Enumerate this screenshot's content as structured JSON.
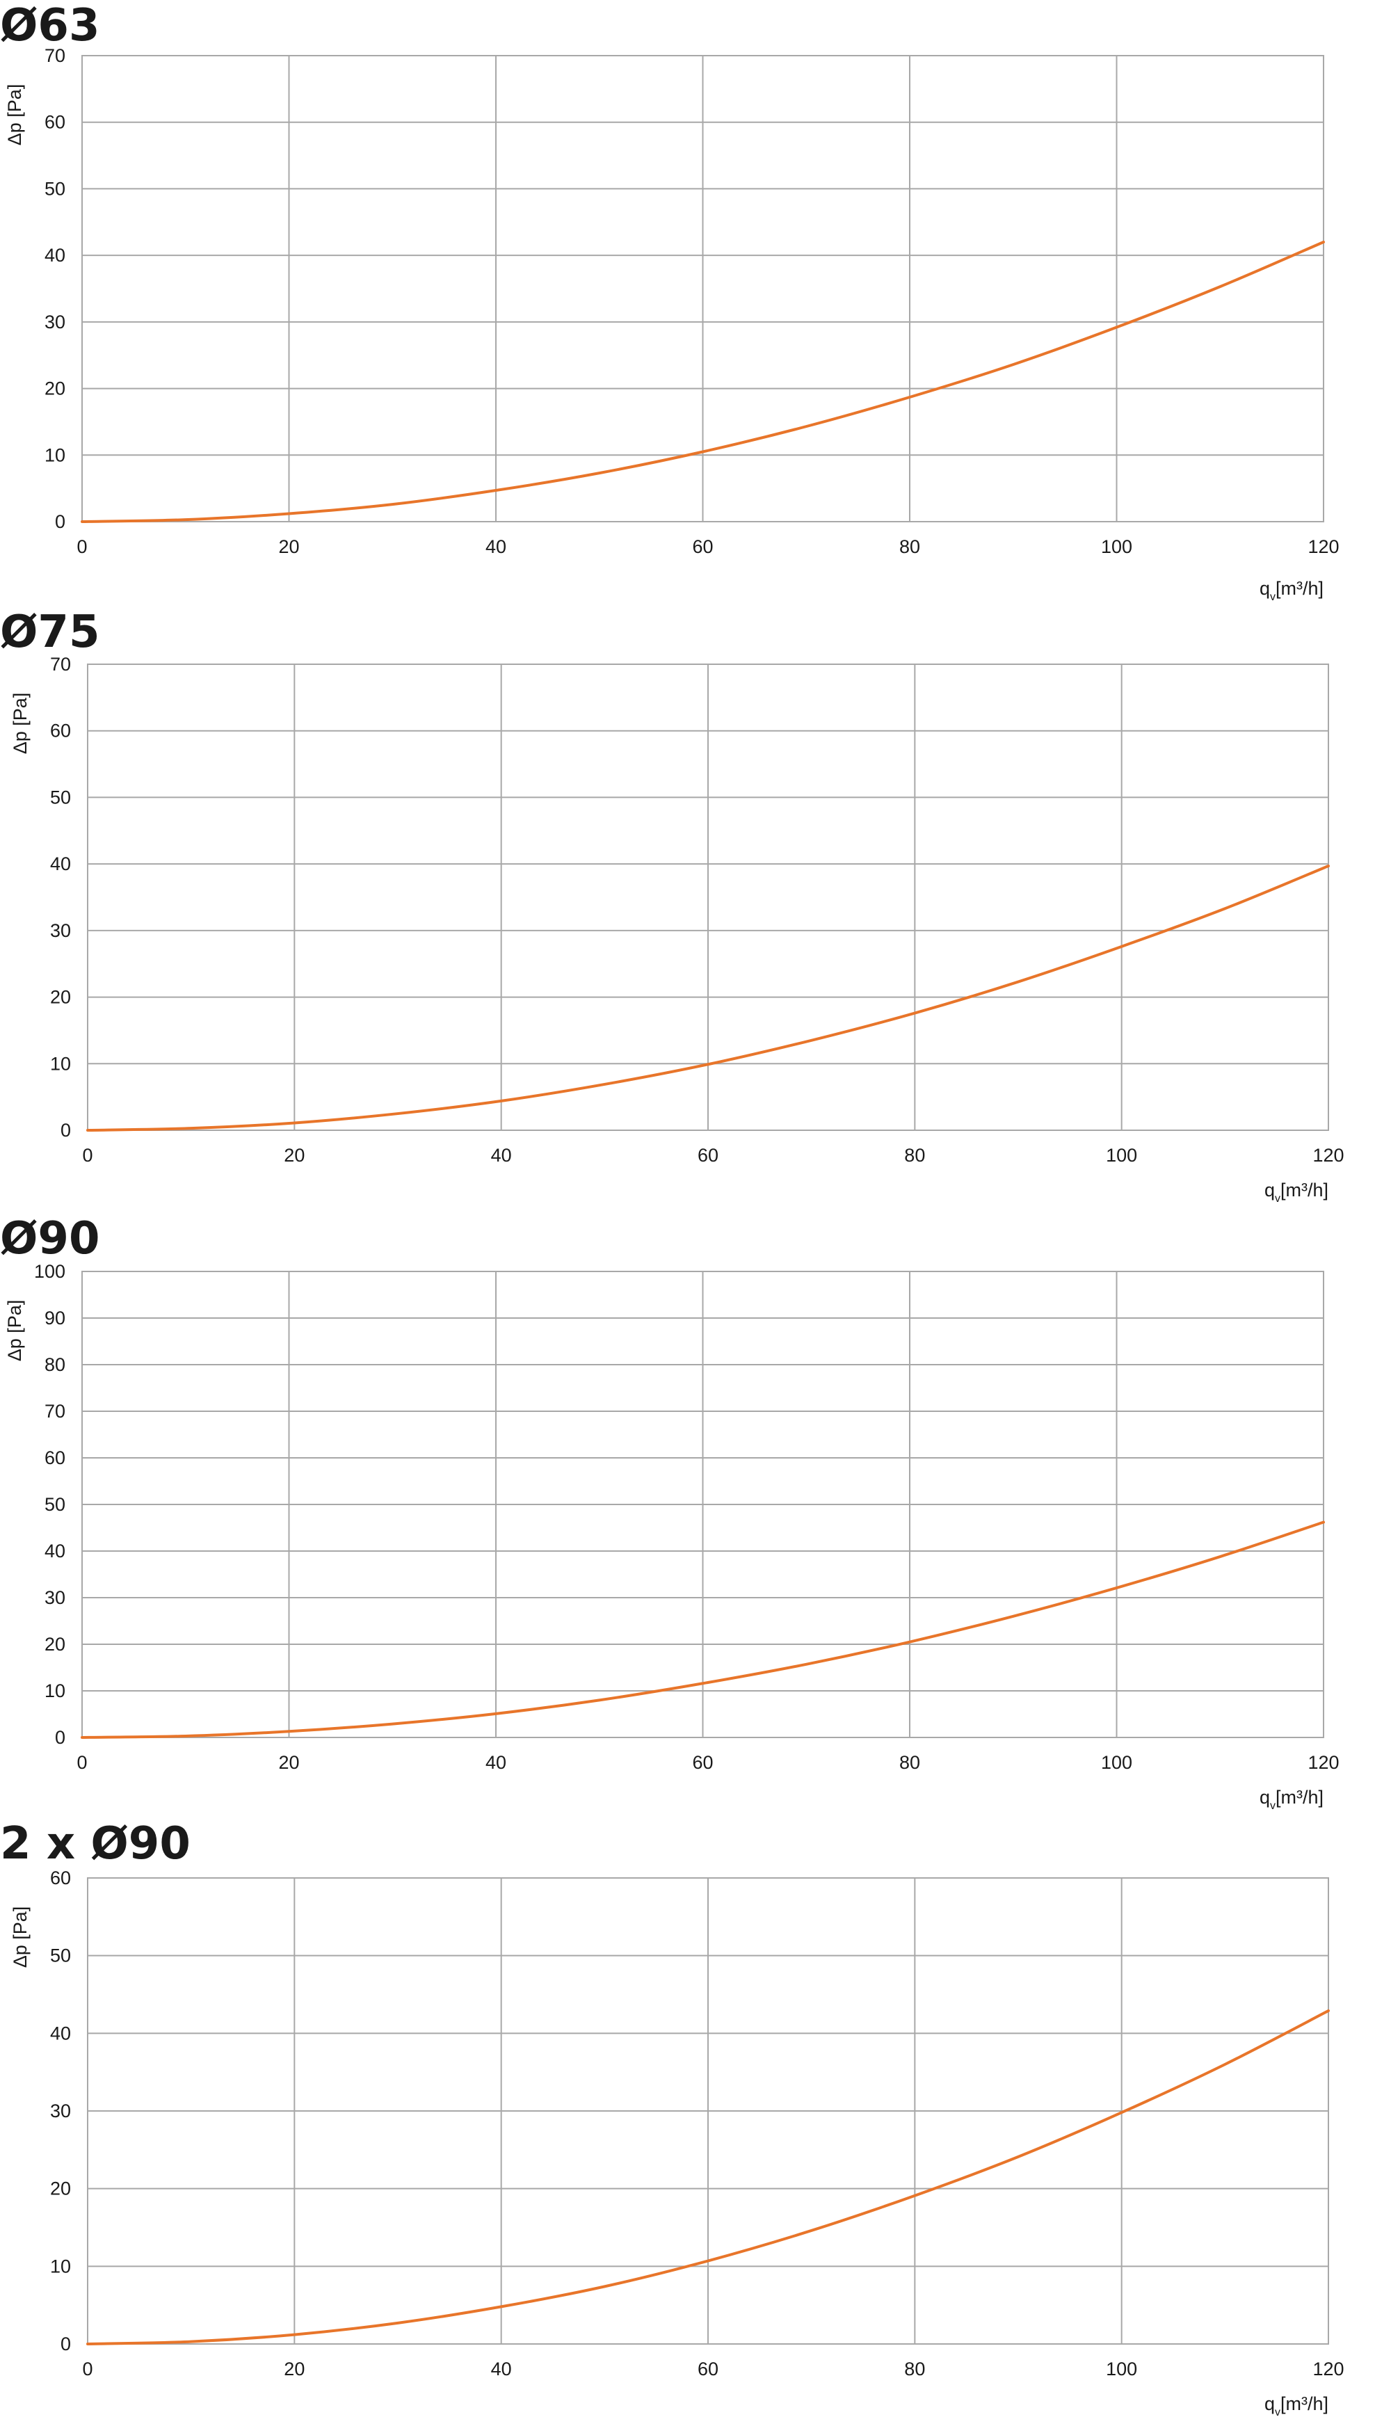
{
  "colors": {
    "curve": "#e8752a",
    "grid": "#a8a8a8",
    "text": "#1a1a1a"
  },
  "chart_data": [
    {
      "type": "line",
      "title": "Ø63",
      "xlabel_main": "q",
      "xlabel_sub": "v",
      "xlabel_unit": "[m³/h]",
      "ylabel": "Δp [Pa]",
      "xlim": [
        0,
        120
      ],
      "ylim": [
        0,
        70
      ],
      "x_ticks": [
        0,
        20,
        40,
        60,
        80,
        100,
        120
      ],
      "y_ticks": [
        0,
        10,
        20,
        30,
        40,
        50,
        60,
        70
      ],
      "grid": true,
      "series": [
        {
          "x": [
            0,
            10,
            20,
            30,
            40,
            50,
            60,
            70,
            80,
            90,
            100,
            110,
            120
          ],
          "y": [
            0,
            0.3,
            1.2,
            2.6,
            4.7,
            7.3,
            10.5,
            14.3,
            18.7,
            23.6,
            29.2,
            35.3,
            42
          ]
        }
      ]
    },
    {
      "type": "line",
      "title": "Ø75",
      "xlabel_main": "q",
      "xlabel_sub": "v",
      "xlabel_unit": "[m³/h]",
      "ylabel": "Δp [Pa]",
      "xlim": [
        0,
        120
      ],
      "ylim": [
        0,
        70
      ],
      "x_ticks": [
        0,
        20,
        40,
        60,
        80,
        100,
        120
      ],
      "y_ticks": [
        0,
        10,
        20,
        30,
        40,
        50,
        60,
        70
      ],
      "grid": true,
      "series": [
        {
          "x": [
            0,
            10,
            20,
            30,
            40,
            50,
            60,
            70,
            80,
            90,
            100,
            110,
            120
          ],
          "y": [
            0,
            0.3,
            1.1,
            2.5,
            4.4,
            6.9,
            9.9,
            13.5,
            17.6,
            22.3,
            27.6,
            33.3,
            39.7
          ]
        }
      ]
    },
    {
      "type": "line",
      "title": "Ø90",
      "xlabel_main": "q",
      "xlabel_sub": "v",
      "xlabel_unit": "[m³/h]",
      "ylabel": "Δp [Pa]",
      "xlim": [
        0,
        120
      ],
      "ylim": [
        0,
        100
      ],
      "x_ticks": [
        0,
        20,
        40,
        60,
        80,
        100,
        120
      ],
      "y_ticks": [
        0,
        10,
        20,
        30,
        40,
        50,
        60,
        70,
        80,
        90,
        100
      ],
      "grid": true,
      "series": [
        {
          "x": [
            0,
            10,
            20,
            30,
            40,
            50,
            60,
            70,
            80,
            90,
            100,
            110,
            120
          ],
          "y": [
            0,
            0.3,
            1.3,
            2.9,
            5.1,
            8.0,
            11.6,
            15.7,
            20.5,
            26.0,
            32.1,
            38.8,
            46.2
          ]
        }
      ]
    },
    {
      "type": "line",
      "title": "2 x Ø90",
      "xlabel_main": "q",
      "xlabel_sub": "v",
      "xlabel_unit": "[m³/h]",
      "ylabel": "Δp [Pa]",
      "xlim": [
        0,
        120
      ],
      "ylim": [
        0,
        60
      ],
      "x_ticks": [
        0,
        20,
        40,
        60,
        80,
        100,
        120
      ],
      "y_ticks": [
        0,
        10,
        20,
        30,
        40,
        50,
        60
      ],
      "grid": true,
      "series": [
        {
          "x": [
            0,
            10,
            20,
            30,
            40,
            50,
            60,
            70,
            80,
            90,
            100,
            110,
            120
          ],
          "y": [
            0,
            0.3,
            1.2,
            2.7,
            4.8,
            7.4,
            10.7,
            14.6,
            19.1,
            24.1,
            29.8,
            36.0,
            42.9
          ]
        }
      ]
    }
  ]
}
